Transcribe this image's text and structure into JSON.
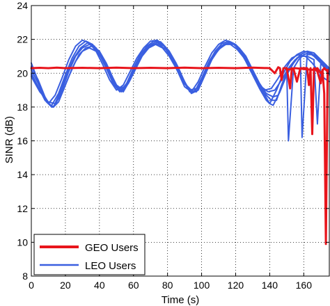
{
  "chart_data": {
    "type": "line",
    "xlabel": "Time (s)",
    "ylabel": "SINR (dB)",
    "xlim": [
      0,
      175
    ],
    "ylim": [
      8,
      24
    ],
    "xticks": [
      "0",
      "20",
      "40",
      "60",
      "80",
      "100",
      "120",
      "140",
      "160"
    ],
    "yticks": [
      "8",
      "10",
      "12",
      "14",
      "16",
      "18",
      "20",
      "22",
      "24"
    ],
    "grid": true,
    "legend_position": "bottom-left",
    "series": [
      {
        "name": "GEO Users",
        "color": "#e8151c",
        "lines": [
          {
            "x": [
              0,
              5,
              10,
              15,
              20,
              30,
              40,
              50,
              60,
              70,
              80,
              90,
              100,
              110,
              120,
              130,
              140,
              143,
              145,
              146,
              147,
              148,
              150,
              152,
              153,
              154,
              156,
              158,
              160,
              162,
              163,
              164,
              165,
              166,
              168,
              170,
              171,
              172,
              173,
              174
            ],
            "y": [
              20.3,
              20.32,
              20.3,
              20.33,
              20.3,
              20.32,
              20.3,
              20.33,
              20.3,
              20.32,
              20.3,
              20.33,
              20.3,
              20.32,
              20.3,
              20.33,
              20.3,
              20.0,
              20.35,
              20.3,
              19.6,
              20.3,
              20.3,
              19.1,
              20.3,
              20.25,
              19.5,
              20.3,
              20.3,
              20.3,
              19.3,
              20.3,
              16.4,
              20.3,
              20.1,
              19.4,
              20.2,
              18.8,
              9.9,
              20.2
            ]
          },
          {
            "x": [
              150,
              155,
              160,
              165,
              168,
              170,
              172,
              174
            ],
            "y": [
              20.2,
              20.3,
              20.25,
              20.2,
              20.3,
              20.0,
              20.3,
              20.1
            ]
          }
        ]
      },
      {
        "name": "LEO Users",
        "color": "#3a5fe0",
        "lines": [
          {
            "x": [
              0,
              3,
              6,
              9,
              10,
              14,
              18,
              22,
              26,
              30,
              34,
              38,
              42,
              46,
              50,
              54,
              58,
              62,
              66,
              70,
              74,
              78,
              82,
              86,
              90,
              94,
              98,
              102,
              106,
              110,
              114,
              118,
              122,
              126,
              130,
              134,
              138,
              140,
              144,
              148,
              152,
              156,
              160,
              164,
              168,
              172,
              175
            ],
            "y": [
              20.6,
              19.8,
              18.9,
              18.3,
              18.2,
              18.7,
              19.7,
              20.8,
              21.6,
              21.95,
              21.8,
              21.3,
              20.5,
              19.6,
              19.0,
              19.3,
              20.1,
              20.9,
              21.5,
              21.9,
              21.95,
              21.6,
              21.0,
              20.1,
              19.2,
              18.9,
              19.5,
              20.4,
              21.2,
              21.7,
              21.95,
              21.8,
              21.4,
              20.7,
              19.9,
              19.1,
              18.4,
              18.2,
              19.0,
              20.0,
              20.7,
              21.1,
              21.3,
              21.2,
              20.9,
              20.5,
              20.2
            ]
          },
          {
            "x": [
              0,
              4,
              8,
              11,
              12,
              16,
              20,
              24,
              28,
              32,
              36,
              40,
              44,
              48,
              52,
              56,
              60,
              64,
              68,
              72,
              76,
              80,
              84,
              88,
              92,
              96,
              100,
              104,
              108,
              112,
              116,
              120,
              124,
              128,
              132,
              136,
              140,
              142,
              146,
              150,
              154,
              158,
              162,
              166,
              170,
              175
            ],
            "y": [
              20.4,
              19.6,
              18.6,
              18.1,
              18.1,
              18.8,
              19.9,
              20.9,
              21.6,
              21.9,
              21.7,
              21.1,
              20.3,
              19.4,
              18.9,
              19.4,
              20.3,
              21.1,
              21.6,
              21.9,
              21.85,
              21.4,
              20.7,
              19.8,
              19.1,
              18.9,
              19.7,
              20.6,
              21.3,
              21.75,
              21.9,
              21.7,
              21.2,
              20.4,
              19.6,
              18.9,
              18.2,
              18.1,
              18.9,
              19.9,
              20.6,
              21.1,
              21.3,
              21.2,
              20.8,
              20.3
            ]
          },
          {
            "x": [
              0,
              4,
              8,
              12,
              13,
              17,
              21,
              25,
              29,
              33,
              37,
              41,
              45,
              49,
              53,
              57,
              61,
              65,
              69,
              73,
              77,
              81,
              85,
              89,
              93,
              97,
              101,
              105,
              109,
              113,
              117,
              121,
              125,
              129,
              133,
              137,
              141,
              144,
              147,
              150,
              151,
              154,
              157,
              160,
              163,
              166,
              170,
              175
            ],
            "y": [
              20.2,
              19.4,
              18.5,
              18.0,
              18.0,
              18.9,
              20.0,
              20.9,
              21.5,
              21.8,
              21.6,
              21.0,
              20.2,
              19.3,
              18.9,
              19.5,
              20.4,
              21.1,
              21.6,
              21.85,
              21.75,
              21.3,
              20.6,
              19.7,
              18.9,
              18.9,
              19.8,
              20.7,
              21.3,
              21.7,
              21.85,
              21.6,
              21.1,
              20.3,
              19.5,
              18.8,
              18.4,
              18.4,
              19.3,
              20.1,
              16.0,
              20.3,
              20.8,
              21.1,
              21.2,
              21.0,
              20.6,
              20.1
            ]
          },
          {
            "x": [
              0,
              4,
              8,
              12,
              14,
              18,
              22,
              26,
              30,
              34,
              38,
              42,
              46,
              50,
              54,
              58,
              62,
              66,
              70,
              74,
              78,
              82,
              86,
              90,
              94,
              98,
              102,
              106,
              110,
              114,
              118,
              122,
              126,
              130,
              134,
              138,
              142,
              145,
              148,
              152,
              156,
              158,
              159,
              162,
              166,
              170,
              175
            ],
            "y": [
              20.0,
              19.2,
              18.4,
              18.0,
              18.1,
              19.0,
              20.1,
              21.0,
              21.5,
              21.7,
              21.5,
              20.9,
              20.0,
              19.2,
              18.9,
              19.6,
              20.5,
              21.2,
              21.6,
              21.8,
              21.6,
              21.1,
              20.4,
              19.5,
              18.8,
              19.0,
              19.9,
              20.8,
              21.4,
              21.7,
              21.8,
              21.5,
              21.0,
              20.2,
              19.4,
              18.8,
              18.6,
              18.7,
              19.5,
              20.3,
              20.9,
              21.0,
              16.2,
              21.1,
              21.1,
              20.7,
              20.0
            ]
          },
          {
            "x": [
              0,
              5,
              9,
              13,
              16,
              20,
              24,
              28,
              32,
              36,
              40,
              44,
              48,
              51,
              55,
              59,
              63,
              67,
              71,
              75,
              79,
              83,
              87,
              91,
              95,
              99,
              103,
              107,
              111,
              115,
              119,
              123,
              127,
              131,
              135,
              139,
              143,
              147,
              151,
              155,
              158,
              162,
              166,
              168,
              170,
              175
            ],
            "y": [
              19.9,
              19.0,
              18.3,
              18.0,
              18.3,
              19.3,
              20.3,
              21.1,
              21.5,
              21.6,
              21.3,
              20.6,
              19.7,
              19.1,
              19.2,
              20.0,
              20.8,
              21.4,
              21.7,
              21.7,
              21.4,
              20.8,
              20.0,
              19.3,
              18.9,
              19.3,
              20.2,
              21.0,
              21.5,
              21.75,
              21.7,
              21.3,
              20.7,
              19.9,
              19.2,
              18.9,
              19.0,
              19.6,
              20.3,
              20.8,
              21.0,
              21.0,
              20.8,
              17.0,
              20.6,
              19.9
            ]
          },
          {
            "x": [
              0,
              5,
              10,
              14,
              18,
              22,
              26,
              30,
              34,
              38,
              42,
              46,
              50,
              54,
              57,
              61,
              65,
              69,
              73,
              77,
              81,
              85,
              89,
              93,
              97,
              101,
              105,
              109,
              113,
              117,
              121,
              125,
              129,
              133,
              137,
              141,
              145,
              149,
              153,
              157,
              161,
              165,
              168,
              172,
              175
            ],
            "y": [
              19.8,
              18.9,
              18.3,
              18.2,
              18.8,
              19.8,
              20.7,
              21.3,
              21.5,
              21.3,
              20.8,
              20.1,
              19.3,
              19.0,
              19.4,
              20.2,
              21.0,
              21.5,
              21.7,
              21.5,
              21.0,
              20.3,
              19.5,
              19.0,
              19.1,
              19.9,
              20.8,
              21.4,
              21.7,
              21.7,
              21.4,
              20.9,
              20.1,
              19.4,
              19.0,
              19.1,
              19.7,
              20.4,
              20.9,
              21.1,
              21.0,
              20.6,
              20.2,
              19.7,
              19.5
            ]
          }
        ]
      }
    ]
  }
}
